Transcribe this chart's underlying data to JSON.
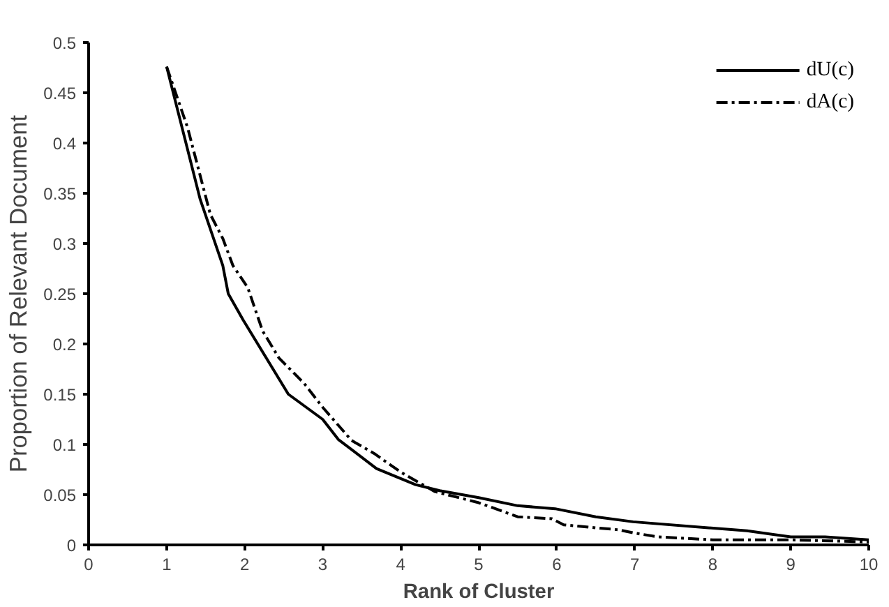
{
  "chart_data": {
    "type": "line",
    "xlabel": "Rank of Cluster",
    "ylabel": "Proportion of Relevant Document",
    "xlim": [
      0,
      10
    ],
    "ylim": [
      0,
      0.5
    ],
    "xticks": [
      0,
      1,
      2,
      3,
      4,
      5,
      6,
      7,
      8,
      9,
      10
    ],
    "yticks": [
      0,
      0.05,
      0.1,
      0.15,
      0.2,
      0.25,
      0.3,
      0.35,
      0.4,
      0.45,
      0.5
    ],
    "grid": false,
    "legend": "top right",
    "marker": "none",
    "series": [
      {
        "name": "dU(c)",
        "color": "#000000",
        "line_style": "solid",
        "x": [
          1,
          1.43,
          1.72,
          1.79,
          1.98,
          2.56,
          3.0,
          3.2,
          3.69,
          4.19,
          4.5,
          5.0,
          5.5,
          5.98,
          6.5,
          6.98,
          8.44,
          9.0,
          9.44,
          10
        ],
        "values": [
          0.476,
          0.344,
          0.278,
          0.25,
          0.224,
          0.15,
          0.125,
          0.105,
          0.076,
          0.06,
          0.054,
          0.047,
          0.039,
          0.036,
          0.028,
          0.023,
          0.014,
          0.008,
          0.008,
          0.005
        ]
      },
      {
        "name": "dA(c)",
        "color": "#000000",
        "line_style": "dashed",
        "x": [
          1,
          1.27,
          1.56,
          1.72,
          1.85,
          2.04,
          2.23,
          2.44,
          2.76,
          3.0,
          3.37,
          3.66,
          4.01,
          4.44,
          5.0,
          5.5,
          5.94,
          6.09,
          6.5,
          6.8,
          6.98,
          7.3,
          8.0,
          9.0,
          10
        ],
        "values": [
          0.476,
          0.415,
          0.329,
          0.305,
          0.278,
          0.256,
          0.213,
          0.186,
          0.161,
          0.137,
          0.104,
          0.091,
          0.072,
          0.053,
          0.042,
          0.028,
          0.026,
          0.02,
          0.017,
          0.015,
          0.012,
          0.008,
          0.005,
          0.005,
          0.003
        ]
      }
    ]
  }
}
